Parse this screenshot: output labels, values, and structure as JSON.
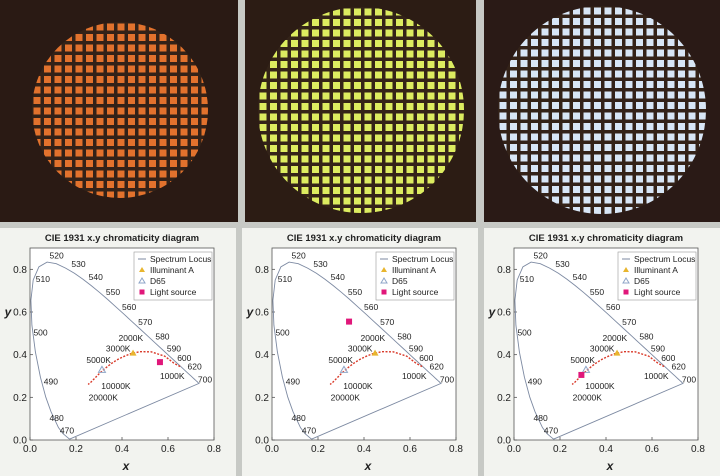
{
  "photos": [
    {
      "glow": "#e2722d",
      "bg": "#2a1a14"
    },
    {
      "glow": "#dcec60",
      "bg": "#2c1c14"
    },
    {
      "glow": "#d8e6f6",
      "bg": "#2a1a16"
    }
  ],
  "colors": {
    "panel_bg": "#f2f3ef",
    "spectrum_locus": "#7d8aa2",
    "planckian": "#d93a2a",
    "illuminant_a": "#e8b52e",
    "d65": "#8fa6c8",
    "light_source": "#e0177a"
  },
  "chart_data": [
    {
      "type": "scatter",
      "title": "CIE 1931 x.y chromaticity diagram",
      "xlabel": "x",
      "ylabel": "y",
      "xlim": [
        0.0,
        0.8
      ],
      "ylim": [
        0.0,
        0.9
      ],
      "xticks": [
        "0.0",
        "0.2",
        "0.4",
        "0.6",
        "0.8"
      ],
      "yticks": [
        "0.0",
        "0.2",
        "0.4",
        "0.6",
        "0.8"
      ],
      "legend": [
        "Spectrum Locus",
        "Illuminant A",
        "D65",
        "Light source"
      ],
      "legend_position": "top-right",
      "wavelength_labels": [
        "470",
        "480",
        "490",
        "500",
        "510",
        "520",
        "530",
        "540",
        "550",
        "560",
        "570",
        "580",
        "590",
        "600",
        "620",
        "700"
      ],
      "cct_labels": [
        "1000K",
        "2000K",
        "3000K",
        "5000K",
        "10000K",
        "20000K"
      ],
      "illuminant_a": [
        0.448,
        0.407
      ],
      "d65": [
        0.313,
        0.329
      ],
      "light_source": [
        0.565,
        0.365
      ]
    },
    {
      "type": "scatter",
      "title": "CIE 1931 x.y chromaticity diagram",
      "xlabel": "x",
      "ylabel": "y",
      "xlim": [
        0.0,
        0.8
      ],
      "ylim": [
        0.0,
        0.9
      ],
      "xticks": [
        "0.0",
        "0.2",
        "0.4",
        "0.6",
        "0.8"
      ],
      "yticks": [
        "0.0",
        "0.2",
        "0.4",
        "0.6",
        "0.8"
      ],
      "legend": [
        "Spectrum Locus",
        "Illuminant A",
        "D65",
        "Light source"
      ],
      "legend_position": "top-right",
      "wavelength_labels": [
        "470",
        "480",
        "490",
        "500",
        "510",
        "520",
        "530",
        "540",
        "550",
        "560",
        "570",
        "580",
        "590",
        "600",
        "620",
        "700"
      ],
      "cct_labels": [
        "1000K",
        "2000K",
        "3000K",
        "5000K",
        "10000K",
        "20000K"
      ],
      "illuminant_a": [
        0.448,
        0.407
      ],
      "d65": [
        0.313,
        0.329
      ],
      "light_source": [
        0.335,
        0.555
      ]
    },
    {
      "type": "scatter",
      "title": "CIE 1931 x.y chromaticity diagram",
      "xlabel": "x",
      "ylabel": "y",
      "xlim": [
        0.0,
        0.8
      ],
      "ylim": [
        0.0,
        0.9
      ],
      "xticks": [
        "0.0",
        "0.2",
        "0.4",
        "0.6",
        "0.8"
      ],
      "yticks": [
        "0.0",
        "0.2",
        "0.4",
        "0.6",
        "0.8"
      ],
      "legend": [
        "Spectrum Locus",
        "Illuminant A",
        "D65",
        "Light source"
      ],
      "legend_position": "top-right",
      "wavelength_labels": [
        "470",
        "480",
        "490",
        "500",
        "510",
        "520",
        "530",
        "540",
        "550",
        "560",
        "570",
        "580",
        "590",
        "600",
        "620",
        "700"
      ],
      "cct_labels": [
        "1000K",
        "2000K",
        "3000K",
        "5000K",
        "10000K",
        "20000K"
      ],
      "illuminant_a": [
        0.448,
        0.407
      ],
      "d65": [
        0.313,
        0.329
      ],
      "light_source": [
        0.293,
        0.305
      ]
    }
  ]
}
